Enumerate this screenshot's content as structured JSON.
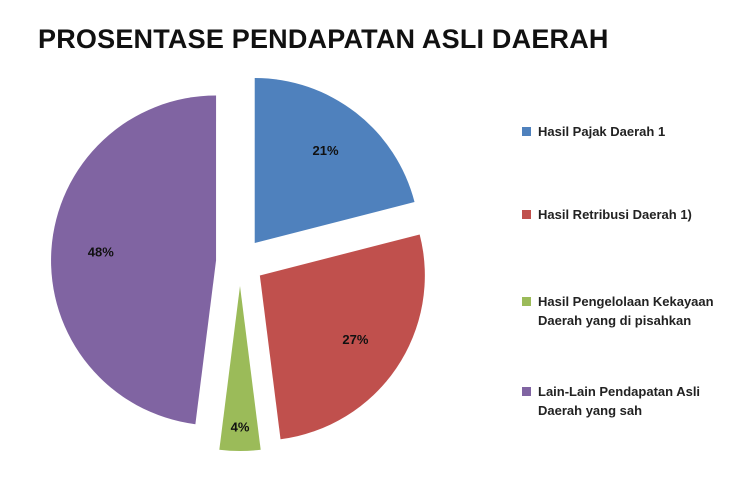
{
  "chart_data": {
    "type": "pie",
    "title": "PROSENTASE PENDAPATAN ASLI DAERAH",
    "categories": [
      "Hasil Pajak Daerah 1",
      "Hasil Retribusi Daerah 1)",
      "Hasil Pengelolaan Kekayaan Daerah yang di pisahkan",
      "Lain-Lain Pendapatan Asli Daerah yang sah"
    ],
    "values": [
      21,
      27,
      4,
      48
    ],
    "value_labels": [
      "21%",
      "27%",
      "4%",
      "48%"
    ],
    "colors": [
      "#4f81bd",
      "#c0504d",
      "#9bbb59",
      "#8064a2"
    ],
    "legend": "right"
  }
}
